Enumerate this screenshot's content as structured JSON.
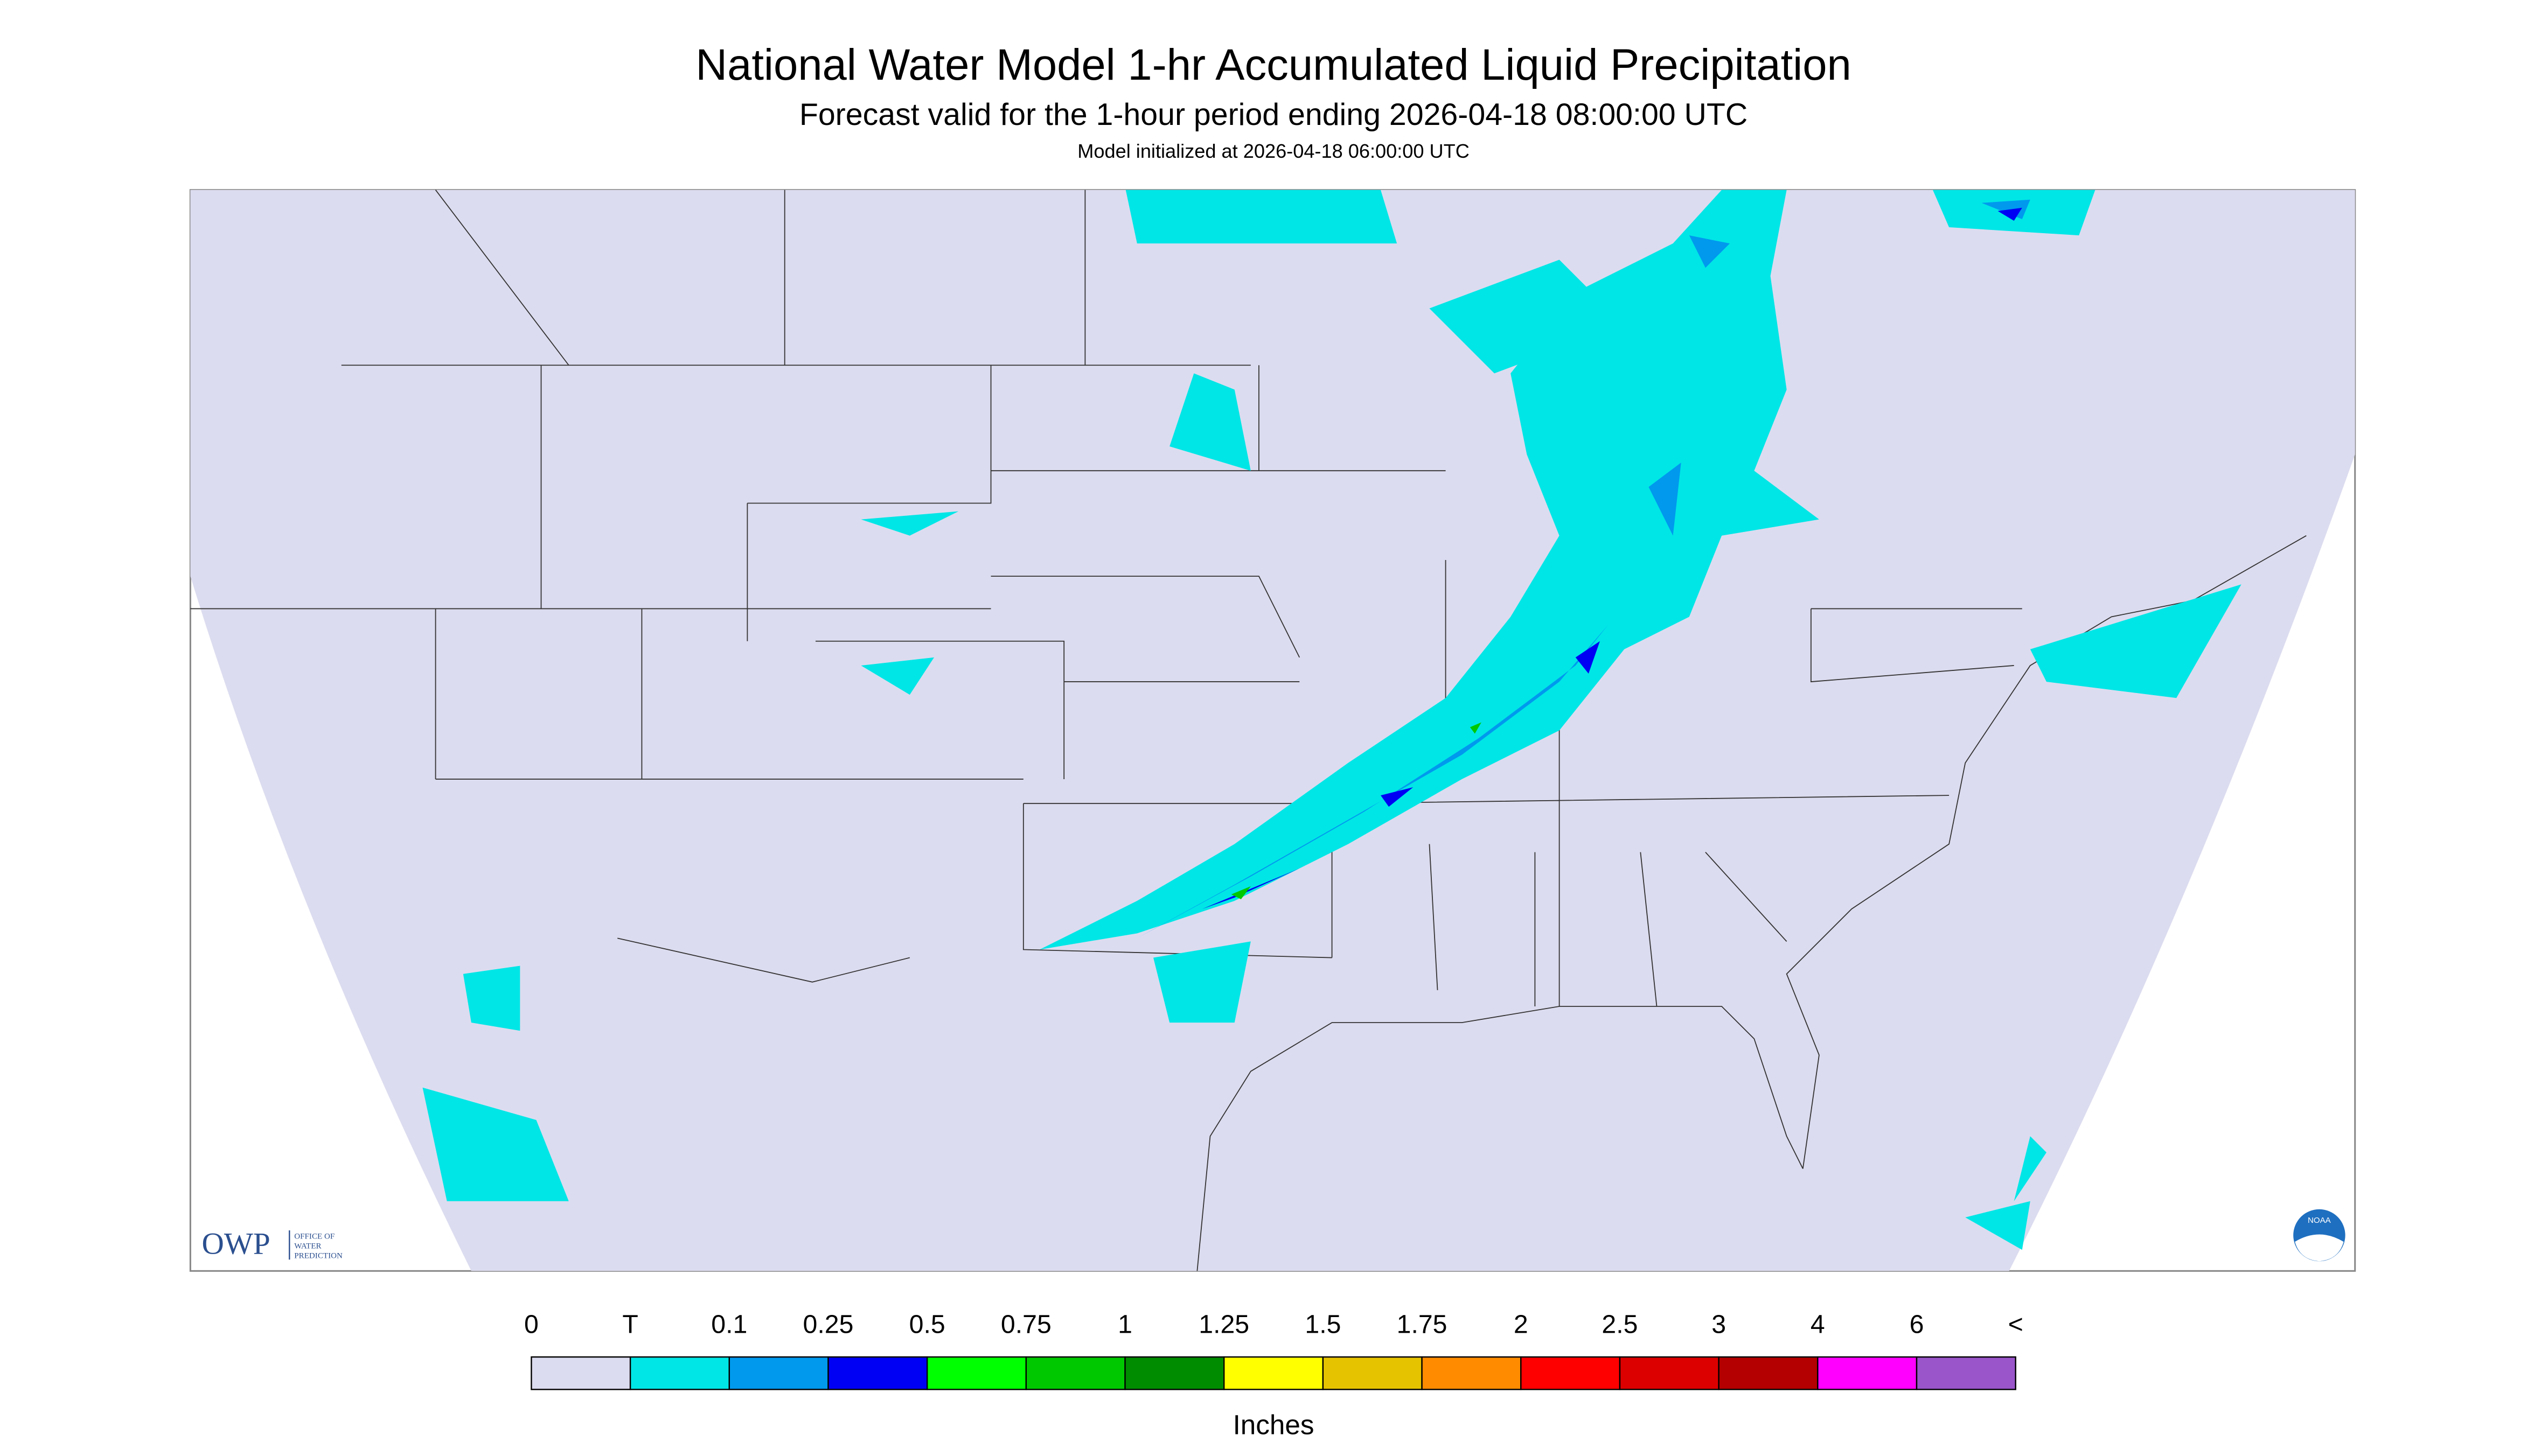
{
  "header": {
    "title": "National Water Model 1-hr Accumulated Liquid Precipitation",
    "subtitle": "Forecast valid for the 1-hour period ending 2026-04-18 08:00:00 UTC",
    "note": "Model initialized at 2026-04-18 06:00:00 UTC"
  },
  "logos": {
    "owp": "OWP",
    "owp_full": [
      "OFFICE OF",
      "WATER",
      "PREDICTION"
    ],
    "noaa": "NOAA"
  },
  "legend": {
    "labels": [
      "0",
      "T",
      "0.1",
      "0.25",
      "0.5",
      "0.75",
      "1",
      "1.25",
      "1.5",
      "1.75",
      "2",
      "2.5",
      "3",
      "4",
      "6",
      "<"
    ],
    "colors": [
      "#dcdcf0",
      "#00e6e6",
      "#0099ee",
      "#0000f5",
      "#00ff00",
      "#00c800",
      "#008c00",
      "#ffff00",
      "#e6c300",
      "#ff8c00",
      "#ff0000",
      "#dc0000",
      "#b40000",
      "#ff00ff",
      "#9955c9"
    ],
    "unit": "Inches"
  }
}
